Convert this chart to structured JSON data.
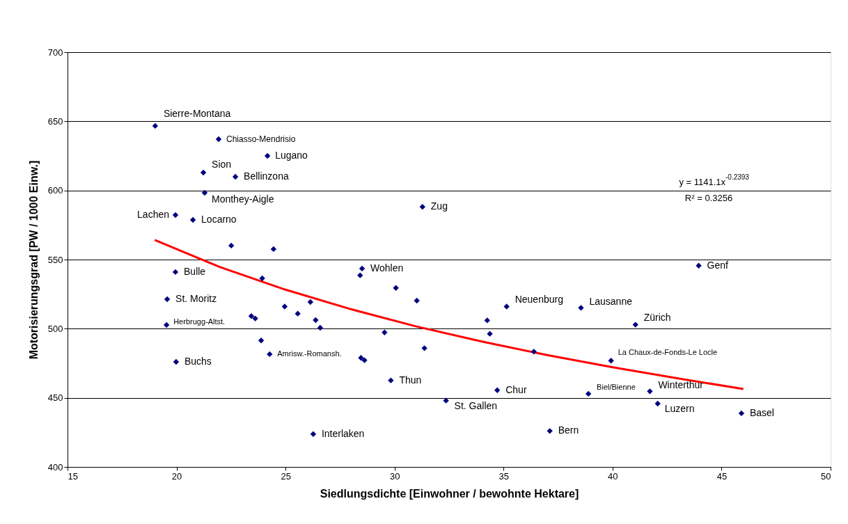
{
  "chart_data": {
    "type": "scatter",
    "xlabel": "Siedlungsdichte [Einwohner / bewohnte Hektare]",
    "ylabel": "Motorisierungsgrad [PW / 1000 Einw.]",
    "xlim": [
      15,
      50
    ],
    "xticks": [
      15,
      20,
      25,
      30,
      35,
      40,
      45,
      50
    ],
    "ylim": [
      400,
      700
    ],
    "yticks": [
      400,
      450,
      500,
      550,
      600,
      650,
      700
    ],
    "grid": "y",
    "marker": "diamond",
    "series": [
      {
        "color": "#000080",
        "x": [
          19.02,
          21.93,
          24.17,
          21.23,
          22.7,
          21.29,
          19.95,
          20.75,
          22.51,
          24.45,
          19.95,
          23.93,
          19.57,
          19.54,
          19.98,
          23.43,
          23.61,
          24.96,
          25.56,
          26.14,
          26.38,
          26.59,
          23.88,
          24.27,
          28.46,
          28.62,
          26.27,
          28.51,
          28.42,
          30.06,
          31.02,
          29.54,
          31.37,
          29.83,
          31.28,
          32.36,
          34.71,
          34.25,
          34.37,
          35.14,
          38.55,
          41.05,
          43.95,
          36.39,
          39.93,
          38.89,
          41.71,
          42.07,
          45.91,
          37.12
        ],
        "values": [
          646.7,
          637.1,
          625.0,
          612.9,
          609.9,
          598.3,
          582.2,
          578.7,
          560.1,
          557.6,
          541.0,
          536.4,
          521.3,
          502.7,
          476.0,
          509.1,
          507.4,
          516.0,
          510.9,
          519.3,
          506.2,
          500.7,
          491.5,
          481.6,
          478.9,
          477.2,
          423.8,
          543.5,
          538.6,
          529.5,
          520.3,
          497.3,
          485.9,
          462.6,
          588.1,
          448.0,
          455.5,
          506.0,
          496.3,
          516.0,
          515.1,
          502.9,
          545.6,
          483.4,
          476.9,
          452.9,
          454.7,
          445.8,
          438.8,
          426.0
        ]
      },
      {
        "type": "line",
        "marker": "none",
        "color": "#ff0000",
        "x": [
          19,
          22,
          25,
          28,
          31,
          34,
          37,
          40,
          43,
          46
        ],
        "values": [
          564.1,
          544.5,
          528.2,
          514.1,
          501.6,
          490.7,
          480.9,
          472.1,
          464.0,
          456.4
        ]
      }
    ],
    "annotations": [
      {
        "text": "Sierre-Montana",
        "x": 19.02,
        "y": 646.7
      },
      {
        "text": "Chiasso-Mendrisio",
        "x": 21.93,
        "y": 637.1
      },
      {
        "text": "Lugano",
        "x": 24.17,
        "y": 625.0
      },
      {
        "text": "Sion",
        "x": 21.23,
        "y": 612.9
      },
      {
        "text": "Bellinzona",
        "x": 22.7,
        "y": 609.9
      },
      {
        "text": "Monthey-Aigle",
        "x": 21.29,
        "y": 598.3
      },
      {
        "text": "Lachen",
        "x": 19.95,
        "y": 582.2
      },
      {
        "text": "Locarno",
        "x": 20.75,
        "y": 578.7
      },
      {
        "text": "Bulle",
        "x": 19.95,
        "y": 541.0
      },
      {
        "text": "St. Moritz",
        "x": 19.57,
        "y": 521.3
      },
      {
        "text": "Herbrugg-Altst.",
        "x": 19.54,
        "y": 502.7
      },
      {
        "text": "Buchs",
        "x": 19.98,
        "y": 476.0
      },
      {
        "text": "Amrisw.-Romansh.",
        "x": 24.27,
        "y": 481.6
      },
      {
        "text": "Interlaken",
        "x": 26.27,
        "y": 423.8
      },
      {
        "text": "Wohlen",
        "x": 28.51,
        "y": 543.5
      },
      {
        "text": "Zug",
        "x": 31.28,
        "y": 588.1
      },
      {
        "text": "Thun",
        "x": 29.83,
        "y": 462.6
      },
      {
        "text": "St. Gallen",
        "x": 32.36,
        "y": 448.0
      },
      {
        "text": "Chur",
        "x": 34.71,
        "y": 455.5
      },
      {
        "text": "Neuenburg",
        "x": 35.14,
        "y": 516.0
      },
      {
        "text": "Lausanne",
        "x": 38.55,
        "y": 515.1
      },
      {
        "text": "Zürich",
        "x": 41.05,
        "y": 502.9
      },
      {
        "text": "Genf",
        "x": 43.95,
        "y": 545.6
      },
      {
        "text": "La Chaux-de-Fonds-Le Locle",
        "x": 39.93,
        "y": 476.9
      },
      {
        "text": "Biel/Bienne",
        "x": 38.89,
        "y": 452.9
      },
      {
        "text": "Winterthur",
        "x": 41.71,
        "y": 454.7
      },
      {
        "text": "Luzern",
        "x": 42.07,
        "y": 445.8
      },
      {
        "text": "Basel",
        "x": 45.91,
        "y": 438.8
      },
      {
        "text": "Bern",
        "x": 37.12,
        "y": 426.0
      },
      "y = 1141.1x$^{-0.2393}$",
      "R² = 0.3256"
    ]
  }
}
